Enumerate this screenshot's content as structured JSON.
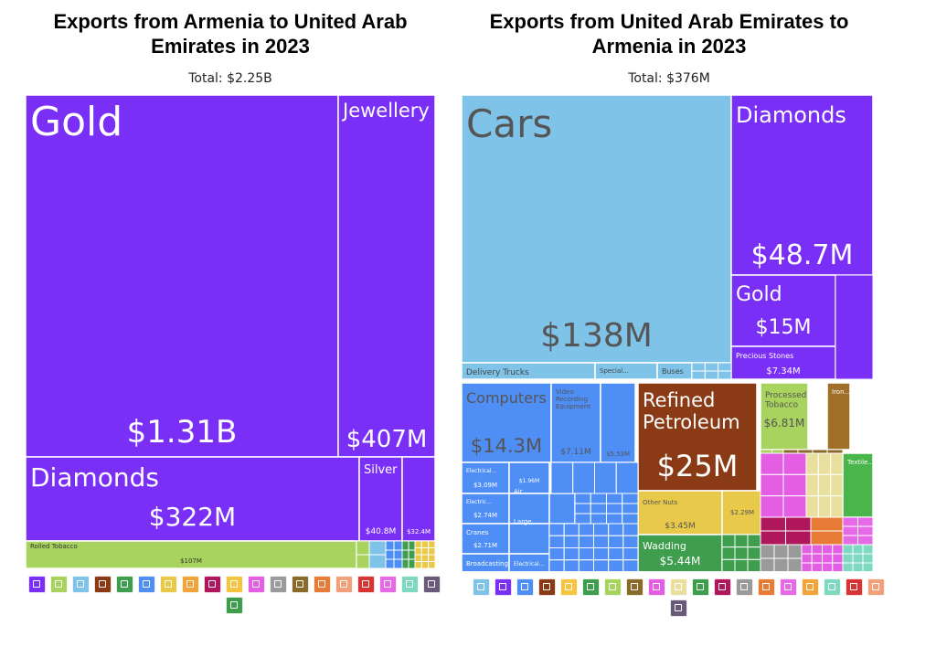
{
  "chart_data": [
    {
      "type": "treemap",
      "title": "Exports from Armenia to United Arab Emirates in 2023",
      "total_label": "Total: $2.25B",
      "nodes": [
        {
          "name": "Gold",
          "value_label": "$1.31B",
          "value": 1310,
          "color": "#7a2ff7"
        },
        {
          "name": "Jewellery",
          "value_label": "$407M",
          "value": 407,
          "color": "#7a2ff7"
        },
        {
          "name": "Diamonds",
          "value_label": "$322M",
          "value": 322,
          "color": "#7a2ff7"
        },
        {
          "name": "Silver",
          "value_label": "$40.8M",
          "value": 40.8,
          "color": "#7a2ff7"
        },
        {
          "name": "",
          "value_label": "$32.4M",
          "value": 32.4,
          "color": "#7a2ff7"
        },
        {
          "name": "Rolled Tobacco",
          "value_label": "$107M",
          "value": 107,
          "color": "#a8d35e"
        }
      ]
    },
    {
      "type": "treemap",
      "title": "Exports from United Arab Emirates to Armenia in 2023",
      "total_label": "Total: $376M",
      "nodes": [
        {
          "name": "Cars",
          "value_label": "$138M",
          "value": 138,
          "color": "#7fc3e8"
        },
        {
          "name": "Delivery Trucks",
          "value_label": "",
          "value": 4,
          "color": "#7fc3e8"
        },
        {
          "name": "Special...",
          "value_label": "",
          "value": 2,
          "color": "#7fc3e8"
        },
        {
          "name": "Buses",
          "value_label": "",
          "value": 1.5,
          "color": "#7fc3e8"
        },
        {
          "name": "Diamonds",
          "value_label": "$48.7M",
          "value": 48.7,
          "color": "#7a2ff7"
        },
        {
          "name": "Gold",
          "value_label": "$15M",
          "value": 15,
          "color": "#7a2ff7"
        },
        {
          "name": "Precious Stones",
          "value_label": "$7.34M",
          "value": 7.34,
          "color": "#7a2ff7"
        },
        {
          "name": "Computers",
          "value_label": "$14.3M",
          "value": 14.3,
          "color": "#4e8ef5"
        },
        {
          "name": "Video Recording Equipment",
          "value_label": "$7.11M",
          "value": 7.11,
          "color": "#4e8ef5"
        },
        {
          "name": "",
          "value_label": "$5.53M",
          "value": 5.53,
          "color": "#4e8ef5"
        },
        {
          "name": "Electrical...",
          "value_label": "$3.09M",
          "value": 3.09,
          "color": "#4e8ef5"
        },
        {
          "name": "",
          "value_label": "$1.96M",
          "value": 1.96,
          "color": "#4e8ef5"
        },
        {
          "name": "Electric...",
          "value_label": "$2.74M",
          "value": 2.74,
          "color": "#4e8ef5"
        },
        {
          "name": "Air...",
          "value_label": "",
          "value": 1.8,
          "color": "#4e8ef5"
        },
        {
          "name": "Audio...",
          "value_label": "",
          "value": 1.7,
          "color": "#4e8ef5"
        },
        {
          "name": "Cranes",
          "value_label": "$2.71M",
          "value": 2.71,
          "color": "#4e8ef5"
        },
        {
          "name": "Large...",
          "value_label": "",
          "value": 1.6,
          "color": "#4e8ef5"
        },
        {
          "name": "Broadcasting...",
          "value_label": "",
          "value": 1.4,
          "color": "#4e8ef5"
        },
        {
          "name": "Electrical...",
          "value_label": "",
          "value": 1.3,
          "color": "#4e8ef5"
        },
        {
          "name": "Refined Petroleum",
          "value_label": "$25M",
          "value": 25,
          "color": "#8a3a14"
        },
        {
          "name": "Processed Tobacco",
          "value_label": "$6.81M",
          "value": 6.81,
          "color": "#a8d35e"
        },
        {
          "name": "Iron...",
          "value_label": "",
          "value": 3,
          "color": "#a0702a"
        },
        {
          "name": "Other Nuts",
          "value_label": "$3.45M",
          "value": 3.45,
          "color": "#e9c94a"
        },
        {
          "name": "",
          "value_label": "$2.29M",
          "value": 2.29,
          "color": "#e9c94a"
        },
        {
          "name": "Wadding",
          "value_label": "$5.44M",
          "value": 5.44,
          "color": "#3f9e4d"
        },
        {
          "name": "Textile...",
          "value_label": "",
          "value": 2.5,
          "color": "#49b54a"
        }
      ]
    }
  ],
  "legend_left": [
    {
      "icon": "diamond-icon",
      "color": "#7a2ff7"
    },
    {
      "icon": "wheat-icon",
      "color": "#a8d35e"
    },
    {
      "icon": "road-icon",
      "color": "#7fc3e8"
    },
    {
      "icon": "pickaxe-icon",
      "color": "#8a3a14"
    },
    {
      "icon": "shirt-icon",
      "color": "#3f9e4d"
    },
    {
      "icon": "gear-icon",
      "color": "#4e8ef5"
    },
    {
      "icon": "document-icon",
      "color": "#e9c94a"
    },
    {
      "icon": "bottle-icon",
      "color": "#f2a33a"
    },
    {
      "icon": "gauge-icon",
      "color": "#b0165b"
    },
    {
      "icon": "fruit-icon",
      "color": "#f5c542"
    },
    {
      "icon": "flask-icon",
      "color": "#e35ee3"
    },
    {
      "icon": "box-icon",
      "color": "#9a9a9a"
    },
    {
      "icon": "anvil-icon",
      "color": "#8a6a2a"
    },
    {
      "icon": "leaf-icon",
      "color": "#e87b35"
    },
    {
      "icon": "hide-icon",
      "color": "#f2a07a"
    },
    {
      "icon": "ticket-icon",
      "color": "#d93434"
    },
    {
      "icon": "recycle-icon",
      "color": "#e66ae6"
    },
    {
      "icon": "animal-icon",
      "color": "#7fd9c1"
    },
    {
      "icon": "easel-icon",
      "color": "#6a5a7a"
    },
    {
      "icon": "shoe-icon",
      "color": "#3f9e4d"
    }
  ],
  "legend_right": [
    {
      "icon": "road-icon",
      "color": "#7fc3e8"
    },
    {
      "icon": "diamond-icon",
      "color": "#7a2ff7"
    },
    {
      "icon": "gear-icon",
      "color": "#4e8ef5"
    },
    {
      "icon": "pickaxe-icon",
      "color": "#8a3a14"
    },
    {
      "icon": "fruit-icon",
      "color": "#f5c542"
    },
    {
      "icon": "shirt-icon",
      "color": "#3f9e4d"
    },
    {
      "icon": "wheat-icon",
      "color": "#a8d35e"
    },
    {
      "icon": "anvil-icon",
      "color": "#8a6a2a"
    },
    {
      "icon": "flask-icon",
      "color": "#e35ee3"
    },
    {
      "icon": "document-icon",
      "color": "#e9e0a0"
    },
    {
      "icon": "shoe-icon",
      "color": "#3f9e4d"
    },
    {
      "icon": "gauge-icon",
      "color": "#b0165b"
    },
    {
      "icon": "box-icon",
      "color": "#9a9a9a"
    },
    {
      "icon": "leaf-icon",
      "color": "#e87b35"
    },
    {
      "icon": "recycle-icon",
      "color": "#e66ae6"
    },
    {
      "icon": "bottle-icon",
      "color": "#f2a33a"
    },
    {
      "icon": "animal-icon",
      "color": "#7fd9c1"
    },
    {
      "icon": "ticket-icon",
      "color": "#d93434"
    },
    {
      "icon": "hide-icon",
      "color": "#f2a07a"
    },
    {
      "icon": "easel-icon",
      "color": "#6a5a7a"
    }
  ]
}
